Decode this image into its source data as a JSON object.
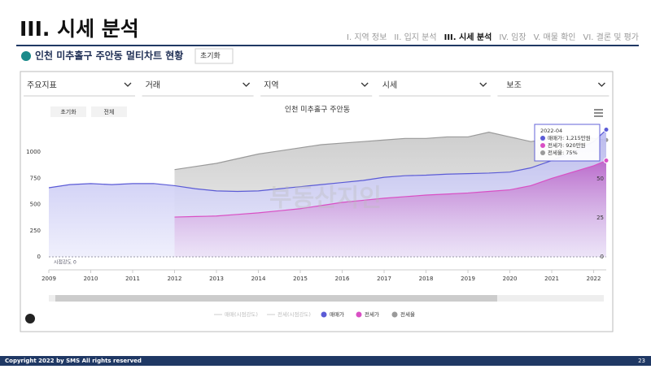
{
  "header": {
    "title": "III. 시세 분석",
    "nav": [
      "I. 지역 정보",
      "II. 입지 분석",
      "III. 시세 분석",
      "IV. 임장",
      "V. 매물 확인",
      "VI. 결론 및 평가"
    ],
    "subtitle": "인천 미추홀구 주안동 멀티차트 현황",
    "reset": "초기화"
  },
  "filters": [
    "주요지표",
    "거래",
    "지역",
    "시세",
    "보조"
  ],
  "buttons": [
    "초기화",
    "전체"
  ],
  "footer": {
    "copyright": "Copyright 2022 by SMS All rights reserved",
    "page": "23"
  },
  "chart_data": {
    "type": "area",
    "title": "인천 미추홀구 주안동",
    "watermark": "부동산지인",
    "annotation": "시점강도 0",
    "legend_extra": [
      "매매(시점강도)",
      "전세(시점강도)"
    ],
    "x": [
      2009,
      2009.5,
      2010,
      2010.5,
      2011,
      2011.5,
      2012,
      2012.5,
      2013,
      2013.5,
      2014,
      2014.5,
      2015,
      2015.5,
      2016,
      2016.5,
      2017,
      2017.5,
      2018,
      2018.5,
      2019,
      2019.5,
      2020,
      2020.5,
      2021,
      2021.5,
      2022,
      2022.3
    ],
    "xlim": [
      2009,
      2022.3
    ],
    "xticks": [
      2009,
      2010,
      2011,
      2012,
      2013,
      2014,
      2015,
      2016,
      2017,
      2018,
      2019,
      2020,
      2021,
      2022
    ],
    "ylim": [
      0,
      1250
    ],
    "yticks": [
      0,
      250,
      500,
      750,
      1000
    ],
    "y2lim": [
      0,
      84
    ],
    "y2ticks": [
      0,
      25,
      50
    ],
    "series": [
      {
        "name": "전세율",
        "color": "#9a9a9a",
        "axis": "y2",
        "values": [
          null,
          null,
          null,
          null,
          null,
          null,
          56,
          58,
          60,
          63,
          66,
          68,
          70,
          72,
          73,
          74,
          75,
          76,
          76,
          77,
          77,
          80,
          77,
          74,
          76,
          78,
          76,
          75
        ]
      },
      {
        "name": "매매가",
        "color": "#5b5bd6",
        "values": [
          660,
          690,
          700,
          690,
          700,
          700,
          680,
          650,
          630,
          625,
          630,
          650,
          670,
          690,
          710,
          730,
          760,
          775,
          780,
          790,
          795,
          800,
          810,
          850,
          920,
          1000,
          1100,
          1215
        ]
      },
      {
        "name": "전세가",
        "color": "#d94fc4",
        "values": [
          null,
          null,
          null,
          null,
          null,
          null,
          380,
          385,
          390,
          405,
          420,
          440,
          460,
          490,
          520,
          540,
          560,
          575,
          590,
          600,
          610,
          625,
          640,
          680,
          750,
          810,
          870,
          920
        ]
      }
    ],
    "tooltip": {
      "date": "2022-04",
      "lines": [
        "매매가: 1,215만원",
        "전세가: 920만원",
        "전세율: 75%"
      ]
    }
  }
}
